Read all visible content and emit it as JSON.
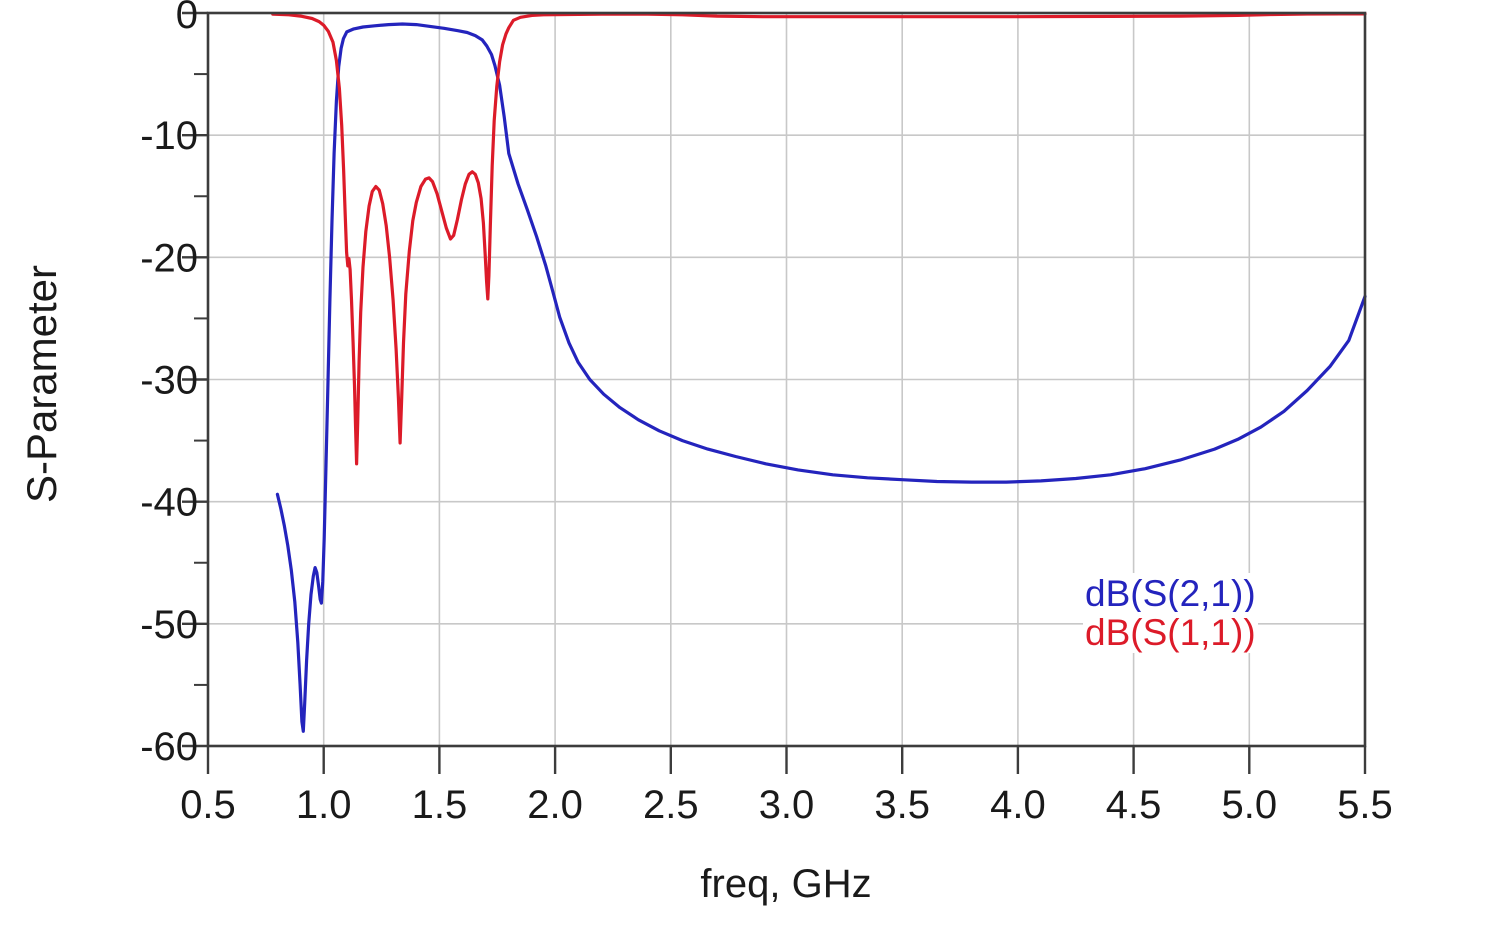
{
  "figure": {
    "background": "#ffffff",
    "frame_color": "#3c3c3c",
    "grid_color": "#c8c8c8",
    "text_color": "#1a1a1a"
  },
  "chart_data": {
    "type": "line",
    "title": "",
    "xlabel": "freq, GHz",
    "ylabel": "S-Parameter",
    "xlim": [
      0.5,
      5.5
    ],
    "ylim": [
      -60,
      0
    ],
    "x_ticks": [
      0.5,
      1.0,
      1.5,
      2.0,
      2.5,
      3.0,
      3.5,
      4.0,
      4.5,
      5.0,
      5.5
    ],
    "x_tick_labels": [
      "0.5",
      "1.0",
      "1.5",
      "2.0",
      "2.5",
      "3.0",
      "3.5",
      "4.0",
      "4.5",
      "5.0",
      "5.5"
    ],
    "y_ticks": [
      0,
      -10,
      -20,
      -30,
      -40,
      -50,
      -60
    ],
    "y_tick_labels": [
      "0",
      "-10",
      "-20",
      "-30",
      "-40",
      "-50",
      "-60"
    ],
    "y_minor_ticks": [
      -5,
      -15,
      -25,
      -35,
      -45,
      -55
    ],
    "grid": true,
    "legend_position": "lower right",
    "series": [
      {
        "name": "dB(S(2,1))",
        "color": "#2424bd",
        "points": [
          [
            0.8,
            -39.4
          ],
          [
            0.815,
            -40.6
          ],
          [
            0.83,
            -42.0
          ],
          [
            0.845,
            -43.6
          ],
          [
            0.86,
            -45.6
          ],
          [
            0.875,
            -48.2
          ],
          [
            0.888,
            -51.5
          ],
          [
            0.898,
            -55.0
          ],
          [
            0.906,
            -58.0
          ],
          [
            0.912,
            -58.8
          ],
          [
            0.918,
            -56.5
          ],
          [
            0.926,
            -53.0
          ],
          [
            0.935,
            -50.0
          ],
          [
            0.945,
            -47.6
          ],
          [
            0.955,
            -46.1
          ],
          [
            0.963,
            -45.4
          ],
          [
            0.97,
            -45.8
          ],
          [
            0.978,
            -46.9
          ],
          [
            0.985,
            -48.0
          ],
          [
            0.99,
            -48.3
          ],
          [
            0.996,
            -46.5
          ],
          [
            1.002,
            -43.0
          ],
          [
            1.01,
            -37.0
          ],
          [
            1.018,
            -30.5
          ],
          [
            1.027,
            -23.5
          ],
          [
            1.036,
            -17.0
          ],
          [
            1.045,
            -11.5
          ],
          [
            1.055,
            -7.2
          ],
          [
            1.065,
            -4.4
          ],
          [
            1.075,
            -2.9
          ],
          [
            1.085,
            -2.1
          ],
          [
            1.1,
            -1.55
          ],
          [
            1.13,
            -1.3
          ],
          [
            1.17,
            -1.15
          ],
          [
            1.22,
            -1.05
          ],
          [
            1.28,
            -0.95
          ],
          [
            1.34,
            -0.9
          ],
          [
            1.4,
            -0.95
          ],
          [
            1.46,
            -1.1
          ],
          [
            1.52,
            -1.25
          ],
          [
            1.58,
            -1.45
          ],
          [
            1.62,
            -1.6
          ],
          [
            1.655,
            -1.85
          ],
          [
            1.685,
            -2.2
          ],
          [
            1.705,
            -2.7
          ],
          [
            1.725,
            -3.4
          ],
          [
            1.74,
            -4.3
          ],
          [
            1.76,
            -5.9
          ],
          [
            1.78,
            -8.5
          ],
          [
            1.8,
            -11.5
          ],
          [
            1.84,
            -14.0
          ],
          [
            1.88,
            -16.1
          ],
          [
            1.92,
            -18.3
          ],
          [
            1.96,
            -20.7
          ],
          [
            1.99,
            -22.8
          ],
          [
            2.02,
            -24.9
          ],
          [
            2.06,
            -27.0
          ],
          [
            2.1,
            -28.6
          ],
          [
            2.15,
            -30.0
          ],
          [
            2.21,
            -31.2
          ],
          [
            2.28,
            -32.3
          ],
          [
            2.36,
            -33.3
          ],
          [
            2.45,
            -34.2
          ],
          [
            2.55,
            -35.0
          ],
          [
            2.66,
            -35.7
          ],
          [
            2.78,
            -36.3
          ],
          [
            2.91,
            -36.9
          ],
          [
            3.05,
            -37.4
          ],
          [
            3.2,
            -37.8
          ],
          [
            3.35,
            -38.05
          ],
          [
            3.5,
            -38.2
          ],
          [
            3.65,
            -38.35
          ],
          [
            3.8,
            -38.4
          ],
          [
            3.95,
            -38.4
          ],
          [
            4.1,
            -38.3
          ],
          [
            4.25,
            -38.1
          ],
          [
            4.4,
            -37.8
          ],
          [
            4.55,
            -37.3
          ],
          [
            4.7,
            -36.6
          ],
          [
            4.85,
            -35.7
          ],
          [
            4.95,
            -34.9
          ],
          [
            5.05,
            -33.9
          ],
          [
            5.15,
            -32.6
          ],
          [
            5.25,
            -30.9
          ],
          [
            5.35,
            -28.9
          ],
          [
            5.43,
            -26.8
          ],
          [
            5.5,
            -23.2
          ]
        ]
      },
      {
        "name": "dB(S(1,1))",
        "color": "#dc1b29",
        "points": [
          [
            0.78,
            -0.1
          ],
          [
            0.85,
            -0.15
          ],
          [
            0.9,
            -0.25
          ],
          [
            0.95,
            -0.45
          ],
          [
            0.98,
            -0.7
          ],
          [
            1.0,
            -1.0
          ],
          [
            1.02,
            -1.5
          ],
          [
            1.04,
            -2.4
          ],
          [
            1.055,
            -3.9
          ],
          [
            1.068,
            -6.2
          ],
          [
            1.078,
            -9.2
          ],
          [
            1.086,
            -12.8
          ],
          [
            1.093,
            -16.5
          ],
          [
            1.099,
            -19.6
          ],
          [
            1.104,
            -20.7
          ],
          [
            1.109,
            -20.1
          ],
          [
            1.114,
            -21.0
          ],
          [
            1.12,
            -23.5
          ],
          [
            1.127,
            -27.0
          ],
          [
            1.133,
            -30.5
          ],
          [
            1.138,
            -34.0
          ],
          [
            1.142,
            -36.9
          ],
          [
            1.147,
            -33.5
          ],
          [
            1.153,
            -28.5
          ],
          [
            1.16,
            -24.5
          ],
          [
            1.17,
            -20.8
          ],
          [
            1.182,
            -17.9
          ],
          [
            1.196,
            -15.8
          ],
          [
            1.21,
            -14.6
          ],
          [
            1.225,
            -14.2
          ],
          [
            1.24,
            -14.5
          ],
          [
            1.255,
            -15.6
          ],
          [
            1.27,
            -17.4
          ],
          [
            1.285,
            -20.0
          ],
          [
            1.3,
            -23.5
          ],
          [
            1.313,
            -27.5
          ],
          [
            1.323,
            -31.5
          ],
          [
            1.33,
            -35.2
          ],
          [
            1.337,
            -31.5
          ],
          [
            1.345,
            -27.0
          ],
          [
            1.355,
            -23.0
          ],
          [
            1.37,
            -19.5
          ],
          [
            1.385,
            -17.0
          ],
          [
            1.4,
            -15.5
          ],
          [
            1.42,
            -14.2
          ],
          [
            1.44,
            -13.6
          ],
          [
            1.455,
            -13.5
          ],
          [
            1.47,
            -13.8
          ],
          [
            1.49,
            -14.8
          ],
          [
            1.51,
            -16.2
          ],
          [
            1.53,
            -17.6
          ],
          [
            1.548,
            -18.5
          ],
          [
            1.562,
            -18.2
          ],
          [
            1.578,
            -16.9
          ],
          [
            1.595,
            -15.3
          ],
          [
            1.612,
            -14.0
          ],
          [
            1.628,
            -13.2
          ],
          [
            1.642,
            -13.0
          ],
          [
            1.655,
            -13.2
          ],
          [
            1.668,
            -13.9
          ],
          [
            1.68,
            -15.2
          ],
          [
            1.69,
            -17.2
          ],
          [
            1.698,
            -19.8
          ],
          [
            1.704,
            -22.0
          ],
          [
            1.709,
            -23.4
          ],
          [
            1.714,
            -21.5
          ],
          [
            1.72,
            -17.5
          ],
          [
            1.728,
            -12.5
          ],
          [
            1.737,
            -8.8
          ],
          [
            1.748,
            -6.0
          ],
          [
            1.76,
            -4.0
          ],
          [
            1.773,
            -2.6
          ],
          [
            1.788,
            -1.7
          ],
          [
            1.8,
            -1.2
          ],
          [
            1.82,
            -0.6
          ],
          [
            1.85,
            -0.35
          ],
          [
            1.9,
            -0.2
          ],
          [
            1.95,
            -0.15
          ],
          [
            2.05,
            -0.12
          ],
          [
            2.2,
            -0.1
          ],
          [
            2.4,
            -0.1
          ],
          [
            2.55,
            -0.15
          ],
          [
            2.7,
            -0.25
          ],
          [
            2.9,
            -0.3
          ],
          [
            3.2,
            -0.3
          ],
          [
            3.6,
            -0.3
          ],
          [
            4.0,
            -0.3
          ],
          [
            4.4,
            -0.28
          ],
          [
            4.7,
            -0.25
          ],
          [
            4.95,
            -0.2
          ],
          [
            5.1,
            -0.12
          ],
          [
            5.25,
            -0.08
          ],
          [
            5.4,
            -0.07
          ],
          [
            5.5,
            -0.07
          ]
        ]
      }
    ]
  }
}
